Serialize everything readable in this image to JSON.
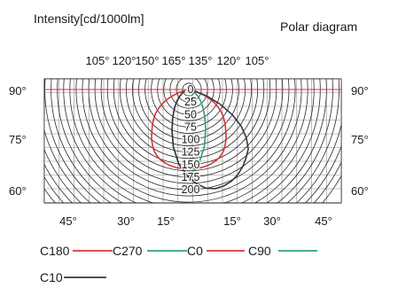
{
  "chart_data": {
    "type": "polar",
    "title": "Polar diagram",
    "unit_label": "Intensity[cd/1000lm]",
    "top_angle_labels": [
      "105°",
      "120°",
      "150°",
      "165°",
      "135°",
      "120°",
      "105°"
    ],
    "left_angle_labels": [
      "90°",
      "75°",
      "60°"
    ],
    "right_angle_labels": [
      "90°",
      "75°",
      "60°"
    ],
    "bottom_angle_labels": [
      "45°",
      "30°",
      "15°",
      "15°",
      "30°",
      "45°"
    ],
    "radial_ticks": [
      0,
      25,
      50,
      75,
      100,
      125,
      150,
      175,
      200
    ],
    "rmax": 225,
    "grid": true,
    "series": [
      {
        "name": "C180—C0",
        "color": "#d9343a",
        "angles_deg": [
          -75,
          -72,
          -69,
          -66,
          -63,
          -60,
          -57,
          -54,
          -51,
          -48,
          -45,
          -42,
          -39,
          -36,
          -33,
          -30,
          -27,
          -24,
          -21,
          -18,
          -15,
          -12,
          -9,
          -6,
          -3,
          0,
          3,
          6,
          9,
          12,
          15,
          18,
          21,
          24,
          27,
          30,
          33,
          36,
          39,
          42,
          45,
          48,
          51,
          54,
          57,
          60,
          63,
          66,
          69,
          72,
          75
        ],
        "values": [
          12,
          22,
          34,
          46,
          56,
          65,
          74,
          82,
          89,
          96,
          103,
          110,
          118,
          126,
          133,
          140,
          145,
          149,
          152,
          154,
          156,
          157,
          158,
          158,
          157,
          157,
          157,
          158,
          158,
          157,
          156,
          154,
          152,
          149,
          145,
          140,
          133,
          126,
          118,
          110,
          103,
          96,
          89,
          82,
          74,
          65,
          56,
          46,
          34,
          22,
          12
        ]
      },
      {
        "name": "C270—C90",
        "color": "#2ea36b",
        "angles_deg": [
          -75,
          -67.5,
          -60,
          -52.5,
          -45,
          -37.5,
          -30,
          -22.5,
          -15,
          -7.5,
          0,
          7.5,
          15,
          22.5,
          30,
          37.5,
          45,
          52.5,
          60,
          67.5,
          75
        ],
        "values": [
          8,
          11,
          16,
          24,
          34,
          47,
          64,
          88,
          119,
          151,
          175,
          151,
          119,
          88,
          64,
          47,
          34,
          24,
          16,
          11,
          8
        ]
      },
      {
        "name": "C10",
        "color": "#3a3348",
        "angles_deg": [
          -75,
          -67.5,
          -60,
          -52.5,
          -45,
          -37.5,
          -30,
          -22.5,
          -15,
          -7.5,
          0,
          5,
          10,
          15,
          20,
          25,
          30,
          35,
          40,
          45,
          50,
          55,
          60,
          65,
          70,
          75
        ],
        "values": [
          8,
          11,
          16,
          24,
          34,
          47,
          64,
          88,
          119,
          151,
          175,
          190,
          200,
          205,
          205,
          202,
          196,
          188,
          178,
          168,
          150,
          128,
          100,
          68,
          38,
          12
        ]
      }
    ]
  },
  "legend": [
    {
      "label": "C180",
      "color": "#d9343a"
    },
    {
      "label": "C270",
      "color": "#2ea36b"
    },
    {
      "label": "C0",
      "color": "#d9343a"
    },
    {
      "label": "C90",
      "color": "#2ea36b"
    },
    {
      "label": "C10",
      "color": "#3a3348"
    }
  ]
}
